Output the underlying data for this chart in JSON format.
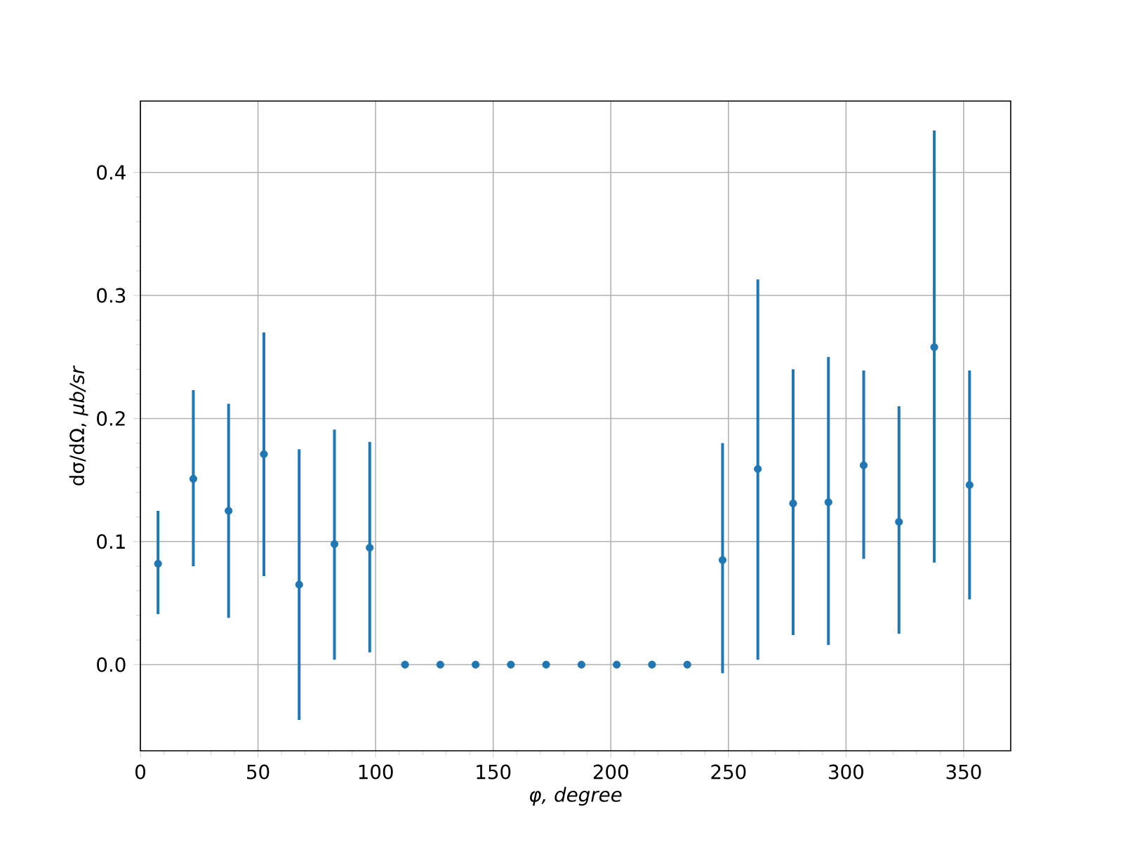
{
  "chart_data": {
    "type": "scatter",
    "xlabel": "φ, degree",
    "ylabel": "dσ/dΩ, *μb/sr*",
    "x": [
      7.5,
      22.5,
      37.5,
      52.5,
      67.5,
      82.5,
      97.5,
      112.5,
      127.5,
      142.5,
      157.5,
      172.5,
      187.5,
      202.5,
      217.5,
      232.5,
      247.5,
      262.5,
      277.5,
      292.5,
      307.5,
      322.5,
      337.5,
      352.5
    ],
    "values": [
      0.082,
      0.151,
      0.125,
      0.171,
      0.065,
      0.098,
      0.095,
      0,
      0,
      0,
      0,
      0,
      0,
      0,
      0,
      0,
      0.085,
      0.159,
      0.131,
      0.132,
      0.162,
      0.116,
      0.258,
      0.146
    ],
    "errors": [
      [
        0.041,
        0.125
      ],
      [
        0.08,
        0.223
      ],
      [
        0.038,
        0.212
      ],
      [
        0.072,
        0.27
      ],
      [
        -0.045,
        0.175
      ],
      [
        0.004,
        0.191
      ],
      [
        0.01,
        0.181
      ],
      null,
      null,
      null,
      null,
      null,
      null,
      null,
      null,
      null,
      [
        -0.007,
        0.18
      ],
      [
        0.004,
        0.313
      ],
      [
        0.024,
        0.24
      ],
      [
        0.016,
        0.25
      ],
      [
        0.086,
        0.239
      ],
      [
        0.025,
        0.21
      ],
      [
        0.083,
        0.434
      ],
      [
        0.053,
        0.239
      ]
    ],
    "color": "#1f77b4",
    "marker": "circle",
    "grid": true,
    "xlim": [
      0,
      370
    ],
    "ylim": [
      -0.07,
      0.458
    ],
    "xticks": [
      0,
      50,
      100,
      150,
      200,
      250,
      300,
      350
    ],
    "yticks": [
      {
        "value": 0,
        "label": "0.0"
      },
      {
        "value": 0.1,
        "label": "0.1"
      },
      {
        "value": 0.2,
        "label": "0.2"
      },
      {
        "value": 0.3,
        "label": "0.3"
      },
      {
        "value": 0.4,
        "label": "0.4"
      }
    ]
  }
}
